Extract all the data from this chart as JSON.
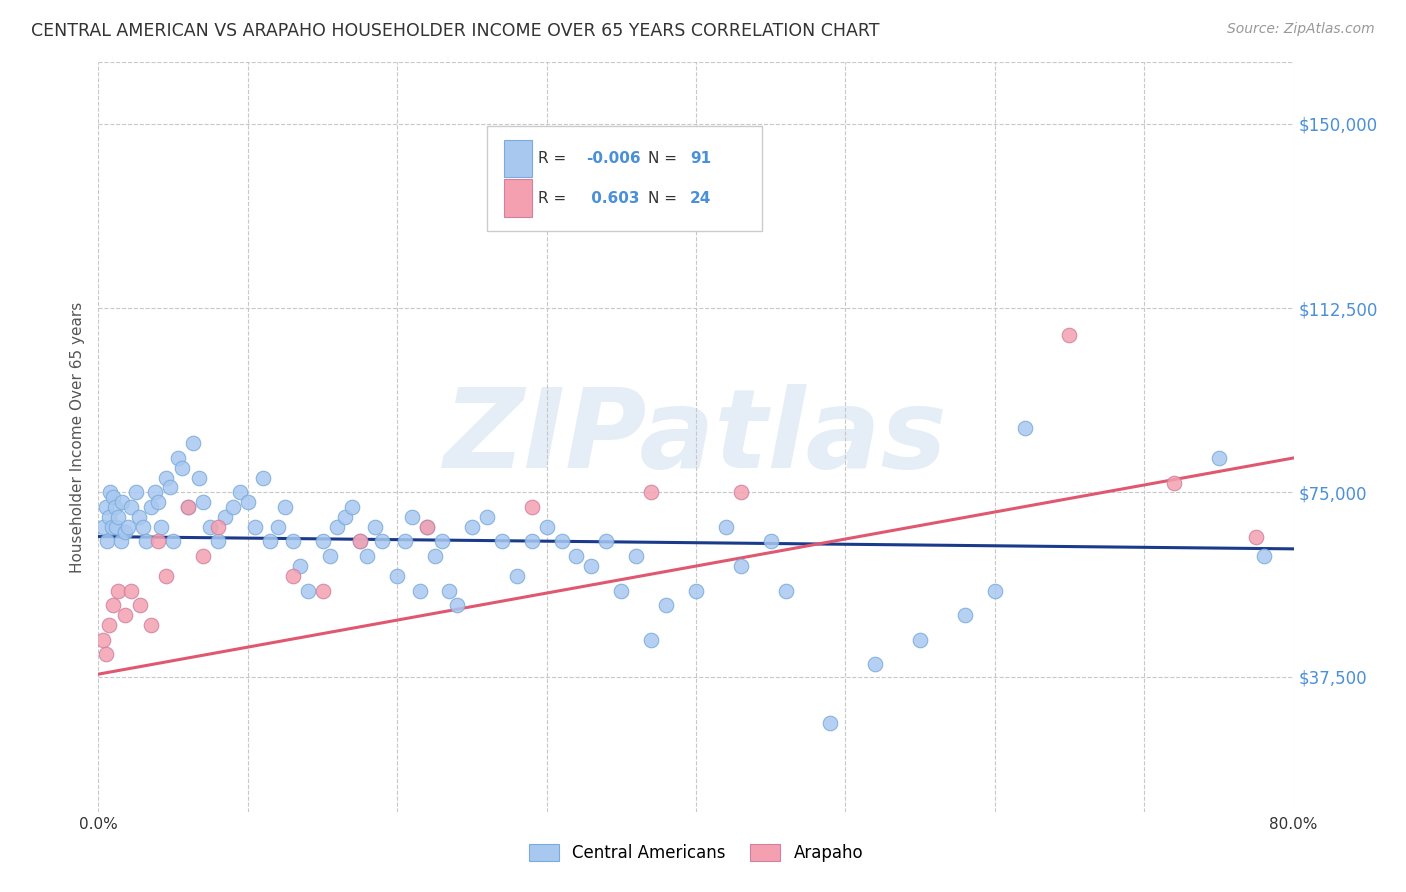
{
  "title": "CENTRAL AMERICAN VS ARAPAHO HOUSEHOLDER INCOME OVER 65 YEARS CORRELATION CHART",
  "source": "Source: ZipAtlas.com",
  "ylabel": "Householder Income Over 65 years",
  "xlim": [
    0.0,
    0.8
  ],
  "ylim": [
    10000,
    162500
  ],
  "yticks": [
    37500,
    75000,
    112500,
    150000
  ],
  "ytick_labels": [
    "$37,500",
    "$75,000",
    "$112,500",
    "$150,000"
  ],
  "xticks": [
    0.0,
    0.1,
    0.2,
    0.3,
    0.4,
    0.5,
    0.6,
    0.7,
    0.8
  ],
  "watermark": "ZIPatlas",
  "blue_color": "#a8c8f0",
  "pink_color": "#f4a0b0",
  "line_blue": "#1a3a8c",
  "line_pink": "#e05870",
  "tick_color_y": "#4a90d9",
  "grid_color": "#c8c8c8",
  "blue_scatter_x": [
    0.003,
    0.005,
    0.006,
    0.007,
    0.008,
    0.009,
    0.01,
    0.011,
    0.012,
    0.013,
    0.015,
    0.016,
    0.018,
    0.02,
    0.022,
    0.025,
    0.027,
    0.03,
    0.032,
    0.035,
    0.038,
    0.04,
    0.042,
    0.045,
    0.048,
    0.05,
    0.053,
    0.056,
    0.06,
    0.063,
    0.067,
    0.07,
    0.075,
    0.08,
    0.085,
    0.09,
    0.095,
    0.1,
    0.105,
    0.11,
    0.115,
    0.12,
    0.125,
    0.13,
    0.135,
    0.14,
    0.15,
    0.155,
    0.16,
    0.165,
    0.17,
    0.175,
    0.18,
    0.185,
    0.19,
    0.2,
    0.205,
    0.21,
    0.215,
    0.22,
    0.225,
    0.23,
    0.235,
    0.24,
    0.25,
    0.26,
    0.27,
    0.28,
    0.29,
    0.3,
    0.31,
    0.32,
    0.33,
    0.34,
    0.35,
    0.36,
    0.37,
    0.38,
    0.4,
    0.42,
    0.43,
    0.45,
    0.46,
    0.49,
    0.52,
    0.55,
    0.58,
    0.6,
    0.62,
    0.75,
    0.78
  ],
  "blue_scatter_y": [
    68000,
    72000,
    65000,
    70000,
    75000,
    68000,
    74000,
    72000,
    68000,
    70000,
    65000,
    73000,
    67000,
    68000,
    72000,
    75000,
    70000,
    68000,
    65000,
    72000,
    75000,
    73000,
    68000,
    78000,
    76000,
    65000,
    82000,
    80000,
    72000,
    85000,
    78000,
    73000,
    68000,
    65000,
    70000,
    72000,
    75000,
    73000,
    68000,
    78000,
    65000,
    68000,
    72000,
    65000,
    60000,
    55000,
    65000,
    62000,
    68000,
    70000,
    72000,
    65000,
    62000,
    68000,
    65000,
    58000,
    65000,
    70000,
    55000,
    68000,
    62000,
    65000,
    55000,
    52000,
    68000,
    70000,
    65000,
    58000,
    65000,
    68000,
    65000,
    62000,
    60000,
    65000,
    55000,
    62000,
    45000,
    52000,
    55000,
    68000,
    60000,
    65000,
    55000,
    28000,
    40000,
    45000,
    50000,
    55000,
    88000,
    82000,
    62000
  ],
  "pink_scatter_x": [
    0.003,
    0.005,
    0.007,
    0.01,
    0.013,
    0.018,
    0.022,
    0.028,
    0.035,
    0.04,
    0.045,
    0.06,
    0.07,
    0.08,
    0.13,
    0.15,
    0.175,
    0.22,
    0.29,
    0.37,
    0.43,
    0.65,
    0.72,
    0.775
  ],
  "pink_scatter_y": [
    45000,
    42000,
    48000,
    52000,
    55000,
    50000,
    55000,
    52000,
    48000,
    65000,
    58000,
    72000,
    62000,
    68000,
    58000,
    55000,
    65000,
    68000,
    72000,
    75000,
    75000,
    107000,
    77000,
    66000
  ],
  "blue_line_x": [
    0.0,
    0.8
  ],
  "blue_line_y": [
    66000,
    63500
  ],
  "pink_line_x": [
    0.0,
    0.8
  ],
  "pink_line_y": [
    38000,
    82000
  ]
}
